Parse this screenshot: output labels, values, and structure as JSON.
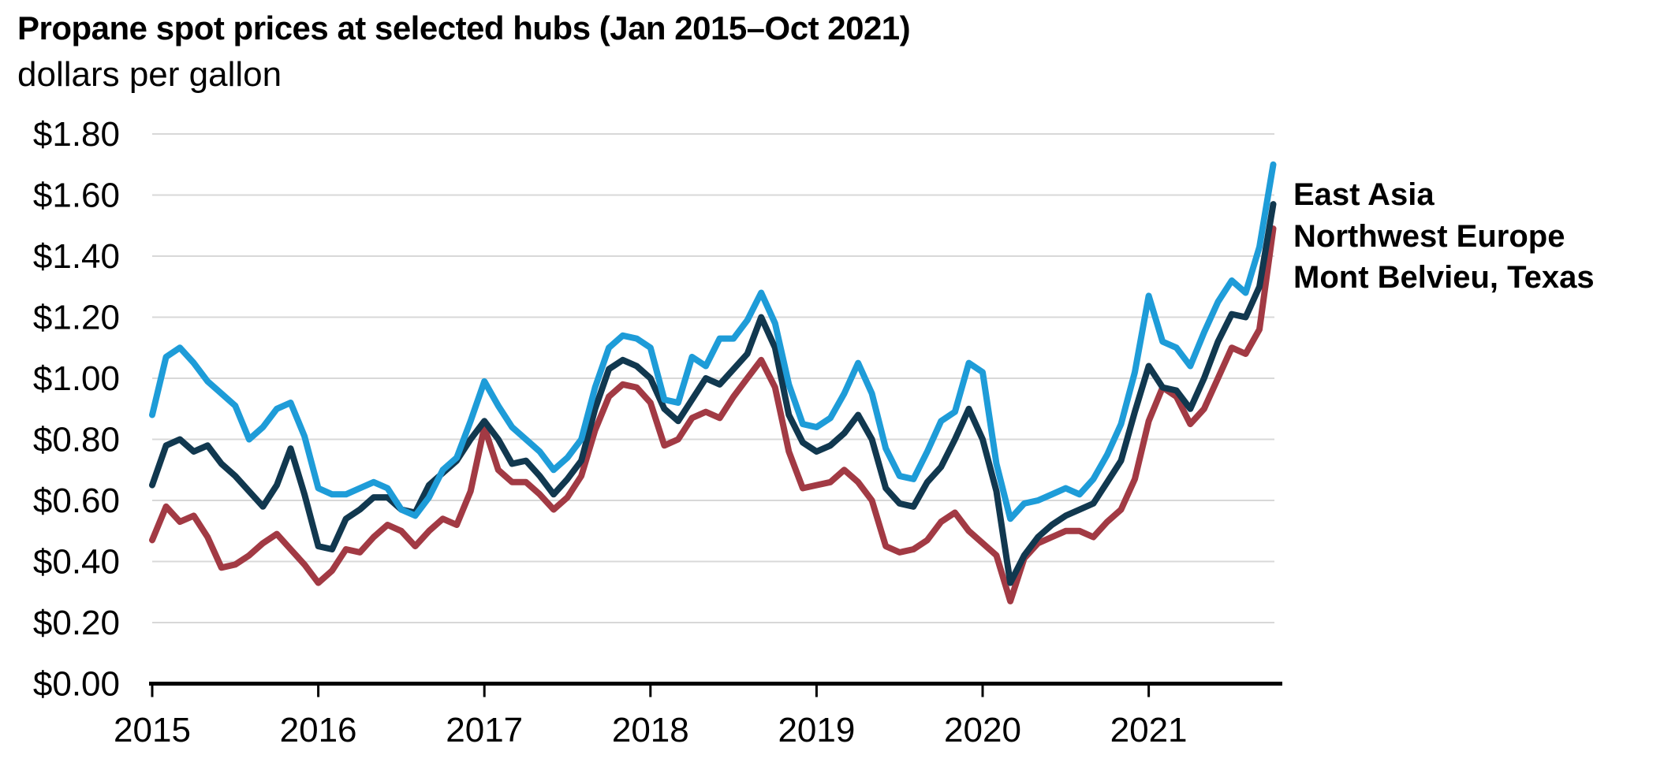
{
  "chart": {
    "title": "Propane spot prices at selected hubs (Jan 2015–Oct 2021)",
    "subtitle": "dollars per gallon"
  },
  "chart_data": {
    "type": "line",
    "title": "Propane spot prices at selected hubs (Jan 2015–Oct 2021)",
    "ylabel": "dollars per gallon",
    "x_start": "2015-01",
    "x_end": "2021-10",
    "x_frequency": "monthly",
    "xlim_years": [
      2015,
      2021.83
    ],
    "ylim": [
      0.0,
      1.8
    ],
    "y_tick_step": 0.2,
    "grid": "horizontal",
    "grid_color": "#d8d8d8",
    "axis_color": "#000000",
    "legend_position": "right",
    "x_tick_labels": [
      "2015",
      "2016",
      "2017",
      "2018",
      "2019",
      "2020",
      "2021"
    ],
    "y_tick_labels": [
      "$0.00",
      "$0.20",
      "$0.40",
      "$0.60",
      "$0.80",
      "$1.00",
      "$1.20",
      "$1.40",
      "$1.60",
      "$1.80"
    ],
    "series": [
      {
        "name": "East Asia",
        "color": "#1e9cd8",
        "values": [
          0.88,
          1.07,
          1.1,
          1.05,
          0.99,
          0.95,
          0.91,
          0.8,
          0.84,
          0.9,
          0.92,
          0.81,
          0.64,
          0.62,
          0.62,
          0.64,
          0.66,
          0.64,
          0.57,
          0.55,
          0.61,
          0.7,
          0.74,
          0.86,
          0.99,
          0.91,
          0.84,
          0.8,
          0.76,
          0.7,
          0.74,
          0.8,
          0.97,
          1.1,
          1.14,
          1.13,
          1.1,
          0.93,
          0.92,
          1.07,
          1.04,
          1.13,
          1.13,
          1.19,
          1.28,
          1.18,
          0.98,
          0.85,
          0.84,
          0.87,
          0.95,
          1.05,
          0.95,
          0.77,
          0.68,
          0.67,
          0.76,
          0.86,
          0.89,
          1.05,
          1.02,
          0.72,
          0.54,
          0.59,
          0.6,
          0.62,
          0.64,
          0.62,
          0.67,
          0.75,
          0.85,
          1.02,
          1.27,
          1.12,
          1.1,
          1.04,
          1.15,
          1.25,
          1.32,
          1.28,
          1.43,
          1.7
        ]
      },
      {
        "name": "Northwest Europe",
        "color": "#11384f",
        "values": [
          0.65,
          0.78,
          0.8,
          0.76,
          0.78,
          0.72,
          0.68,
          0.63,
          0.58,
          0.65,
          0.77,
          0.62,
          0.45,
          0.44,
          0.54,
          0.57,
          0.61,
          0.61,
          0.57,
          0.56,
          0.65,
          0.69,
          0.73,
          0.8,
          0.86,
          0.8,
          0.72,
          0.73,
          0.68,
          0.62,
          0.67,
          0.73,
          0.9,
          1.03,
          1.06,
          1.04,
          1.0,
          0.9,
          0.86,
          0.93,
          1.0,
          0.98,
          1.03,
          1.08,
          1.2,
          1.1,
          0.88,
          0.79,
          0.76,
          0.78,
          0.82,
          0.88,
          0.8,
          0.64,
          0.59,
          0.58,
          0.66,
          0.71,
          0.8,
          0.9,
          0.8,
          0.63,
          0.33,
          0.42,
          0.48,
          0.52,
          0.55,
          0.57,
          0.59,
          0.66,
          0.73,
          0.89,
          1.04,
          0.97,
          0.96,
          0.9,
          1.0,
          1.12,
          1.21,
          1.2,
          1.3,
          1.57
        ]
      },
      {
        "name": "Mont Belvieu, Texas",
        "color": "#a23a44",
        "values": [
          0.47,
          0.58,
          0.53,
          0.55,
          0.48,
          0.38,
          0.39,
          0.42,
          0.46,
          0.49,
          0.44,
          0.39,
          0.33,
          0.37,
          0.44,
          0.43,
          0.48,
          0.52,
          0.5,
          0.45,
          0.5,
          0.54,
          0.52,
          0.63,
          0.84,
          0.7,
          0.66,
          0.66,
          0.62,
          0.57,
          0.61,
          0.68,
          0.83,
          0.94,
          0.98,
          0.97,
          0.92,
          0.78,
          0.8,
          0.87,
          0.89,
          0.87,
          0.94,
          1.0,
          1.06,
          0.97,
          0.76,
          0.64,
          0.65,
          0.66,
          0.7,
          0.66,
          0.6,
          0.45,
          0.43,
          0.44,
          0.47,
          0.53,
          0.56,
          0.5,
          0.46,
          0.42,
          0.27,
          0.41,
          0.46,
          0.48,
          0.5,
          0.5,
          0.48,
          0.53,
          0.57,
          0.67,
          0.86,
          0.97,
          0.94,
          0.85,
          0.9,
          1.0,
          1.1,
          1.08,
          1.16,
          1.49
        ]
      }
    ]
  }
}
